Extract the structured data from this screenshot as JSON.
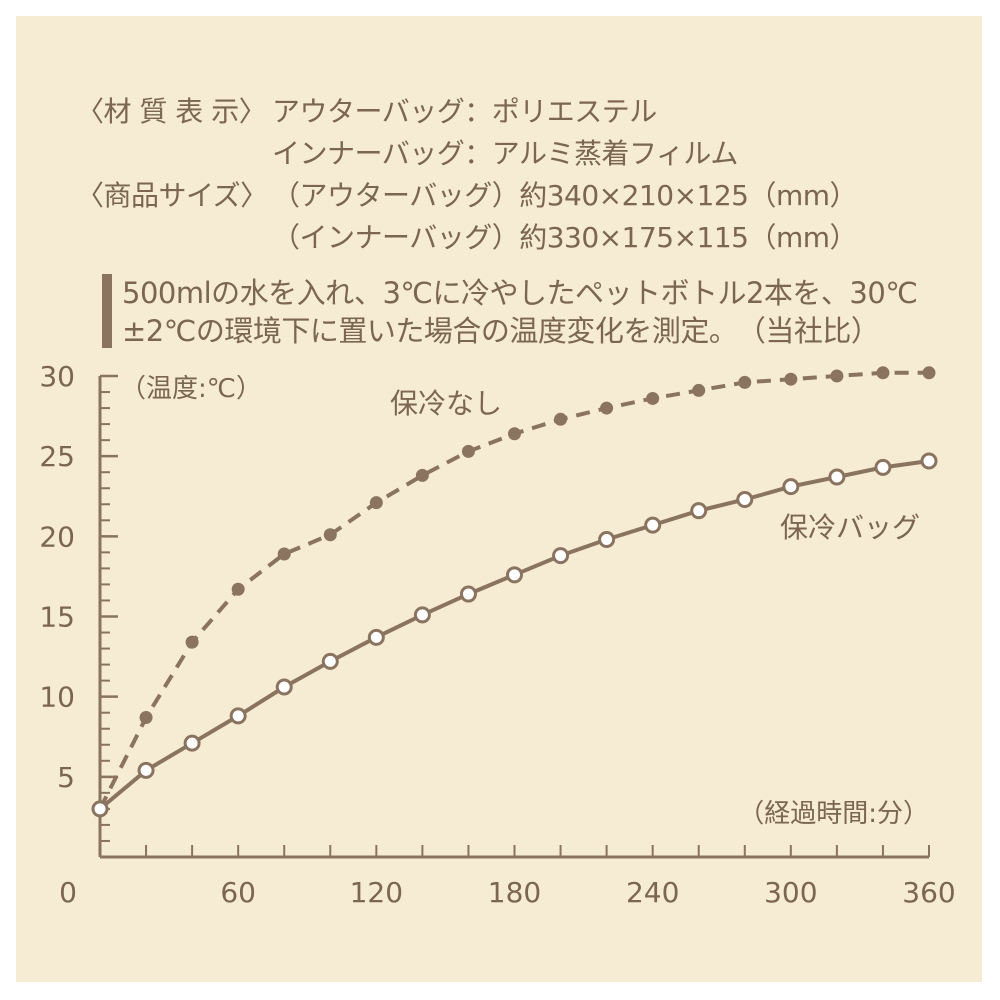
{
  "spec": {
    "material_label": "〈材 質 表 示〉",
    "outer_bag_material": "アウターバッグ：ポリエステル",
    "inner_bag_material": "インナーバッグ：アルミ蒸着フィルム",
    "size_label": "〈商品サイズ〉",
    "outer_bag_size": "（アウターバッグ）約340×210×125（mm）",
    "inner_bag_size": "（インナーバッグ）約330×175×115（mm）"
  },
  "note": {
    "line1": "500mlの水を入れ、3℃に冷やしたペットボトル2本を、30℃",
    "line2": "±2℃の環境下に置いた場合の温度変化を測定。　（当社比）"
  },
  "colors": {
    "background": "#f6ebd3",
    "line": "#8a7460",
    "text": "#7a6651"
  },
  "chart_data": {
    "type": "line",
    "ylabel": "（温度:℃）",
    "xlabel": "（経過時間:分）",
    "xlim": [
      0,
      360
    ],
    "ylim": [
      0,
      30
    ],
    "x_ticks": [
      0,
      60,
      120,
      180,
      240,
      300,
      360
    ],
    "y_ticks": [
      5,
      10,
      15,
      20,
      25,
      30
    ],
    "grid": false,
    "legend": "labels beside lines",
    "x": [
      0,
      20,
      40,
      60,
      80,
      100,
      120,
      140,
      160,
      180,
      200,
      220,
      240,
      260,
      280,
      300,
      320,
      340,
      360
    ],
    "series": [
      {
        "name": "保冷なし",
        "style": "dashed",
        "marker": "filled",
        "values": [
          3,
          8.7,
          13.4,
          16.7,
          18.9,
          20.1,
          22.1,
          23.8,
          25.3,
          26.4,
          27.3,
          28,
          28.6,
          29.1,
          29.6,
          29.8,
          30.0,
          30.2,
          30.2
        ]
      },
      {
        "name": "保冷バッグ",
        "style": "solid",
        "marker": "open",
        "values": [
          3,
          5.4,
          7.1,
          8.8,
          10.6,
          12.2,
          13.7,
          15.1,
          16.4,
          17.6,
          18.8,
          19.8,
          20.7,
          21.6,
          22.3,
          23.1,
          23.7,
          24.3,
          24.7
        ]
      }
    ]
  }
}
